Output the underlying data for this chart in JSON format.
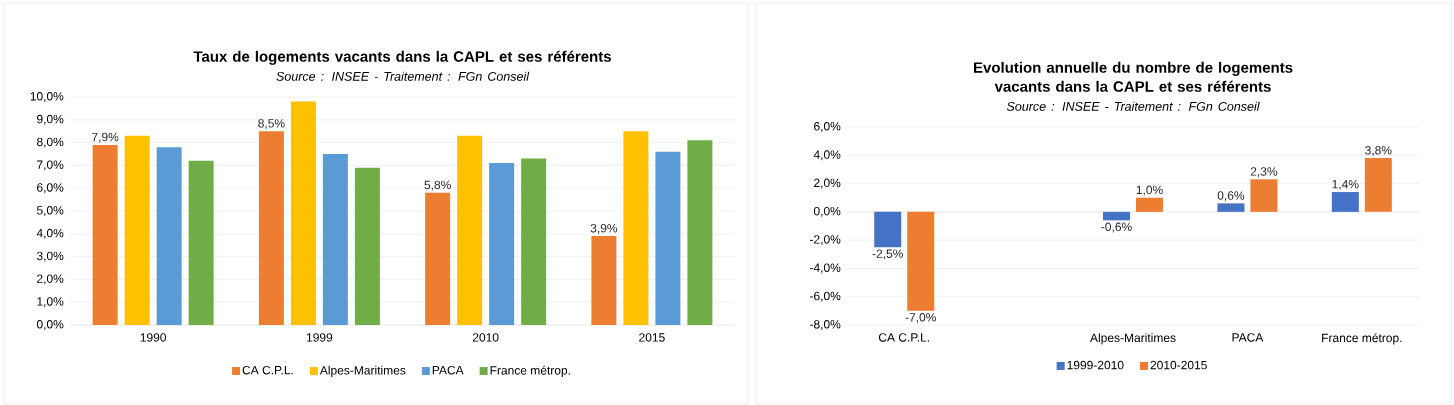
{
  "chart_data": [
    {
      "type": "bar",
      "title": "Taux de logements vacants dans la CAPL et ses référents",
      "subtitle": "Source : INSEE - Traitement : FGn Conseil",
      "categories": [
        "1990",
        "1999",
        "2010",
        "2015"
      ],
      "series": [
        {
          "name": "CA C.P.L.",
          "color": "#ed7d31",
          "values": [
            7.9,
            8.5,
            5.8,
            3.9
          ],
          "value_labels": [
            "7,9%",
            "8,5%",
            "5,8%",
            "3,9%"
          ]
        },
        {
          "name": "Alpes-Maritimes",
          "color": "#ffc000",
          "values": [
            8.3,
            9.8,
            8.3,
            8.5
          ]
        },
        {
          "name": "PACA",
          "color": "#5b9bd5",
          "values": [
            7.8,
            7.5,
            7.1,
            7.6
          ]
        },
        {
          "name": "France métrop.",
          "color": "#70ad47",
          "values": [
            7.2,
            6.9,
            7.3,
            8.1
          ]
        }
      ],
      "ylim": [
        0,
        10
      ],
      "yticks": [
        {
          "value": 0,
          "label": "0,0%"
        },
        {
          "value": 1,
          "label": "1,0%"
        },
        {
          "value": 2,
          "label": "2,0%"
        },
        {
          "value": 3,
          "label": "3,0%"
        },
        {
          "value": 4,
          "label": "4,0%"
        },
        {
          "value": 5,
          "label": "5,0%"
        },
        {
          "value": 6,
          "label": "6,0%"
        },
        {
          "value": 7,
          "label": "7,0%"
        },
        {
          "value": 8,
          "label": "8,0%"
        },
        {
          "value": 9,
          "label": "9,0%"
        },
        {
          "value": 10,
          "label": "10,0%"
        }
      ],
      "grid": "y",
      "legend": "bottom"
    },
    {
      "type": "bar",
      "title": "Evolution annuelle du nombre de logements vacants dans la CAPL et ses référents",
      "subtitle": "Source : INSEE - Traitement : FGn Conseil",
      "categories": [
        "CA C.P.L.",
        null,
        "Alpes-Maritimes",
        "PACA",
        "France métrop."
      ],
      "series": [
        {
          "name": "1999-2010",
          "color": "#4472c4",
          "values": [
            -2.5,
            null,
            -0.6,
            0.6,
            1.4
          ],
          "value_labels": [
            "-2,5%",
            null,
            "-0,6%",
            "0,6%",
            "1,4%"
          ]
        },
        {
          "name": "2010-2015",
          "color": "#ed7d31",
          "values": [
            -7.0,
            null,
            1.0,
            2.3,
            3.8
          ],
          "value_labels": [
            "-7,0%",
            null,
            "1,0%",
            "2,3%",
            "3,8%"
          ]
        }
      ],
      "ylim": [
        -8,
        6
      ],
      "yticks": [
        {
          "value": -8,
          "label": "-8,0%"
        },
        {
          "value": -6,
          "label": "-6,0%"
        },
        {
          "value": -4,
          "label": "-4,0%"
        },
        {
          "value": -2,
          "label": "-2,0%"
        },
        {
          "value": 0,
          "label": "0,0%"
        },
        {
          "value": 2,
          "label": "2,0%"
        },
        {
          "value": 4,
          "label": "4,0%"
        },
        {
          "value": 6,
          "label": "6,0%"
        }
      ],
      "grid": "y",
      "legend": "bottom"
    }
  ]
}
